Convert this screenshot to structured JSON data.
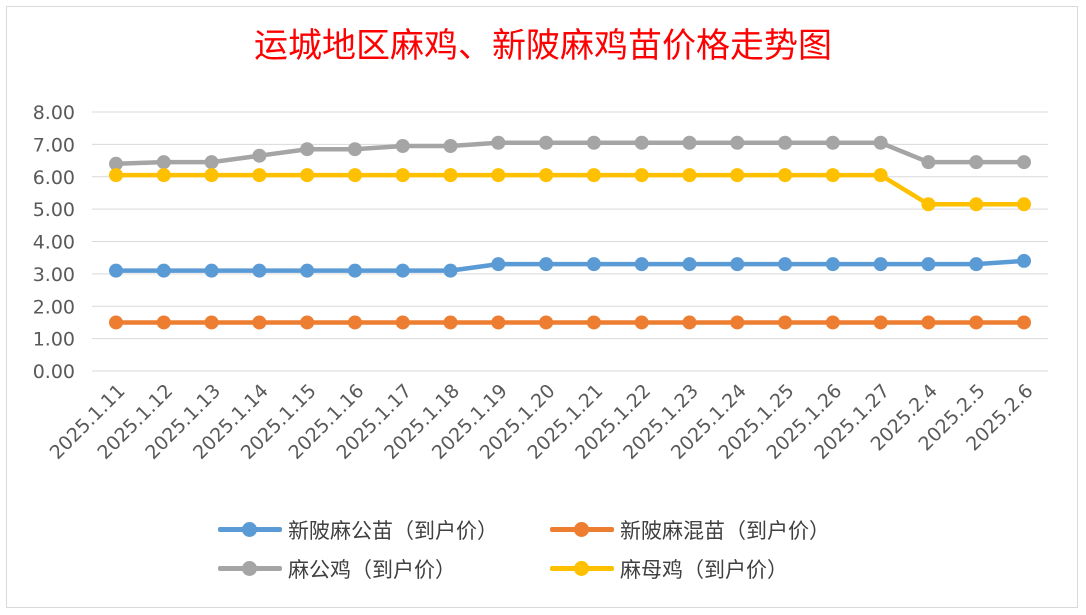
{
  "chart_data": {
    "type": "line",
    "title": "运城地区麻鸡、新陂麻鸡苗价格走势图",
    "xlabel": "",
    "ylabel": "",
    "ylim": [
      0,
      8
    ],
    "ytick_step": 1,
    "ytick_labels": [
      "0.00",
      "1.00",
      "2.00",
      "3.00",
      "4.00",
      "5.00",
      "6.00",
      "7.00",
      "8.00"
    ],
    "grid": true,
    "legend_position": "bottom",
    "categories": [
      "2025.1.11",
      "2025.1.12",
      "2025.1.13",
      "2025.1.14",
      "2025.1.15",
      "2025.1.16",
      "2025.1.17",
      "2025.1.18",
      "2025.1.19",
      "2025.1.20",
      "2025.1.21",
      "2025.1.22",
      "2025.1.23",
      "2025.1.24",
      "2025.1.25",
      "2025.1.26",
      "2025.1.27",
      "2025.2.4",
      "2025.2.5",
      "2025.2.6"
    ],
    "series": [
      {
        "name": "新陂麻公苗（到户价）",
        "color": "#5b9bd5",
        "values": [
          3.1,
          3.1,
          3.1,
          3.1,
          3.1,
          3.1,
          3.1,
          3.1,
          3.3,
          3.3,
          3.3,
          3.3,
          3.3,
          3.3,
          3.3,
          3.3,
          3.3,
          3.3,
          3.3,
          3.4
        ]
      },
      {
        "name": "新陂麻混苗（到户价）",
        "color": "#ed7d31",
        "values": [
          1.5,
          1.5,
          1.5,
          1.5,
          1.5,
          1.5,
          1.5,
          1.5,
          1.5,
          1.5,
          1.5,
          1.5,
          1.5,
          1.5,
          1.5,
          1.5,
          1.5,
          1.5,
          1.5,
          1.5
        ]
      },
      {
        "name": "麻公鸡（到户价）",
        "color": "#a5a5a5",
        "values": [
          6.4,
          6.45,
          6.45,
          6.65,
          6.85,
          6.85,
          6.95,
          6.95,
          7.05,
          7.05,
          7.05,
          7.05,
          7.05,
          7.05,
          7.05,
          7.05,
          7.05,
          6.45,
          6.45,
          6.45
        ]
      },
      {
        "name": "麻母鸡（到户价）",
        "color": "#ffc000",
        "values": [
          6.05,
          6.05,
          6.05,
          6.05,
          6.05,
          6.05,
          6.05,
          6.05,
          6.05,
          6.05,
          6.05,
          6.05,
          6.05,
          6.05,
          6.05,
          6.05,
          6.05,
          5.15,
          5.15,
          5.15
        ]
      }
    ]
  }
}
